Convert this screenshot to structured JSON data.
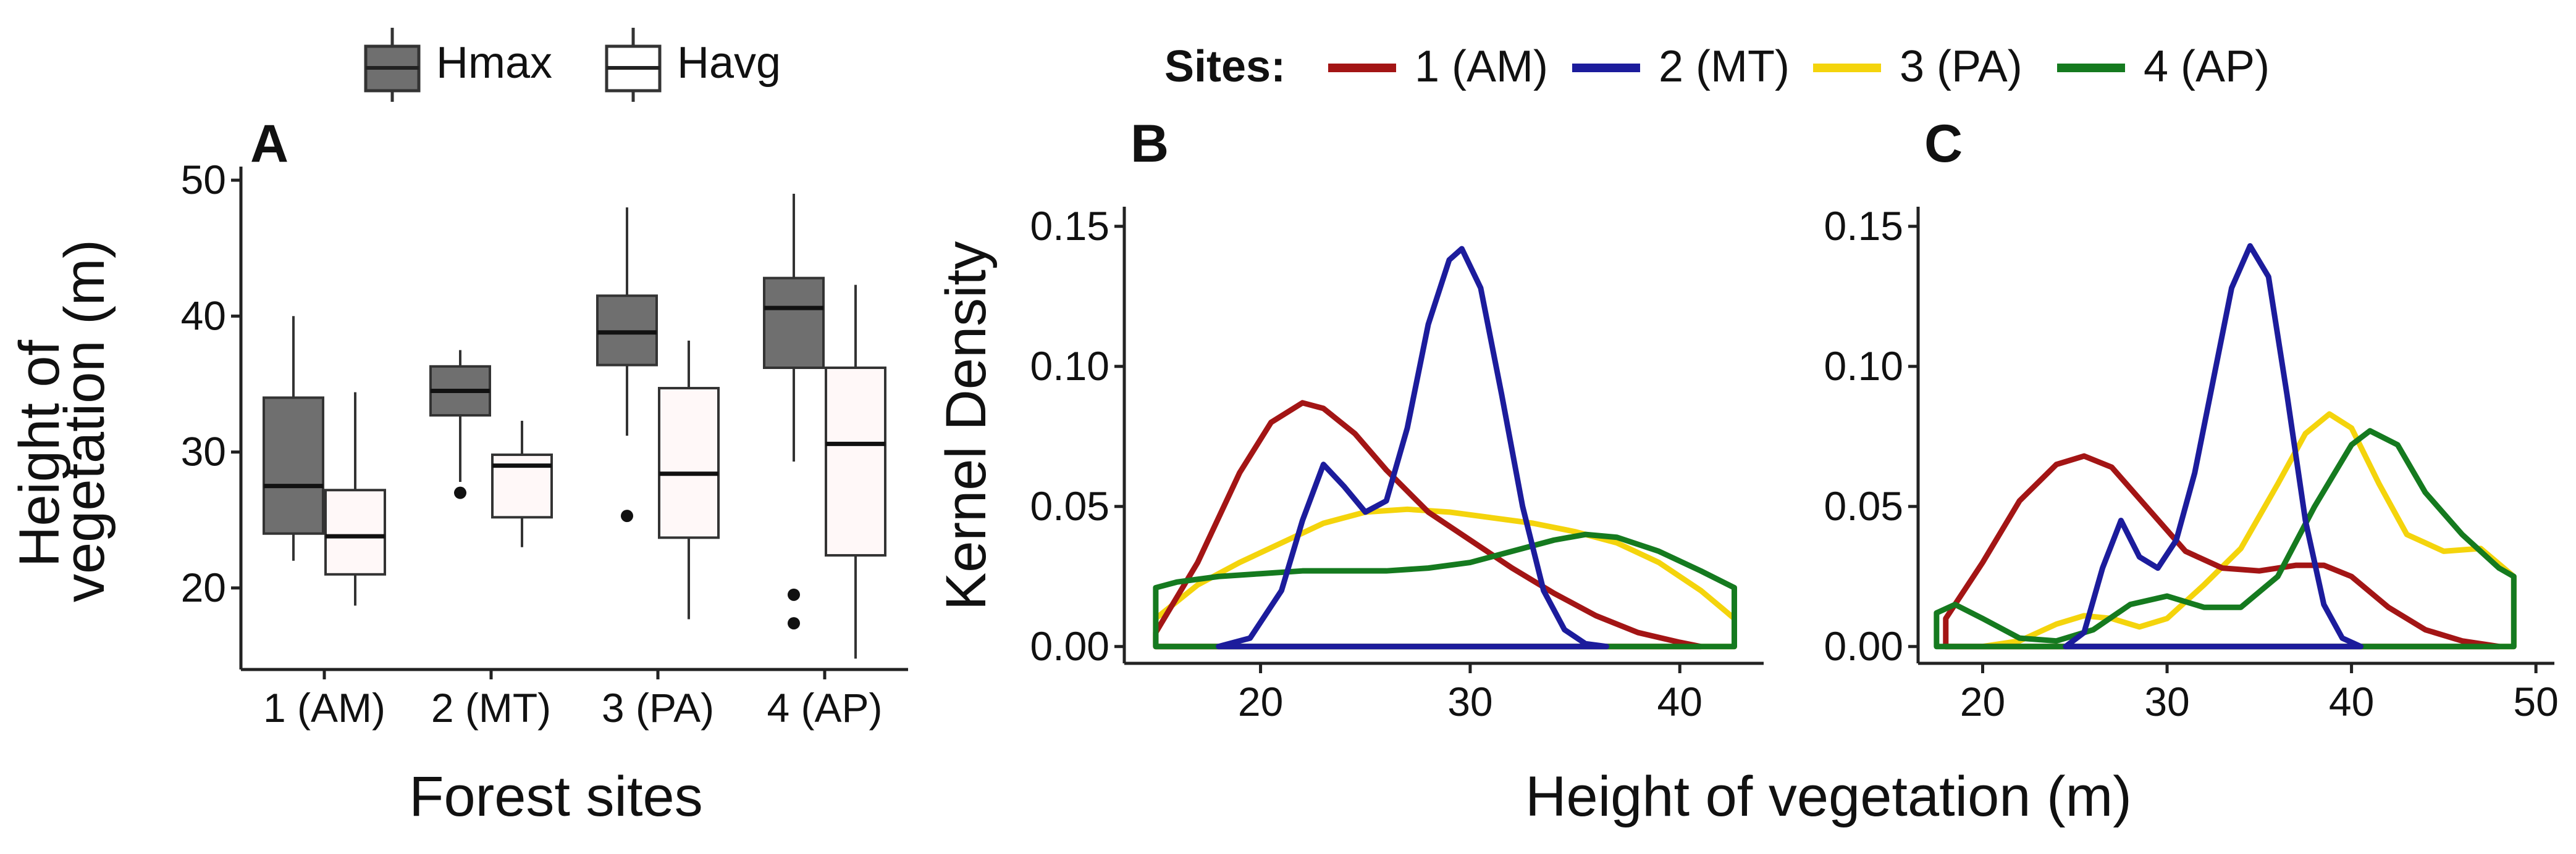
{
  "colors": {
    "hmax_fill": "#6f6f6f",
    "havg_fill": "#fff8f8",
    "box_stroke": "#333333",
    "site1": "#a31515",
    "site2": "#1c1c9c",
    "site3": "#f4d40c",
    "site4": "#157a1f"
  },
  "legend_box": {
    "hmax": "Hmax",
    "havg": "Havg"
  },
  "legend_sites": {
    "title": "Sites:"
  },
  "xlabel_shared": "Height of vegetation (m)",
  "chart_data": [
    {
      "panel": "A",
      "type": "box",
      "xlabel": "Forest sites",
      "ylabel_lines": [
        "Height of",
        "vegetation (m)"
      ],
      "categories": [
        "1 (AM)",
        "2 (MT)",
        "3 (PA)",
        "4 (AP)"
      ],
      "ylim": [
        14,
        51
      ],
      "yticks": [
        20,
        30,
        40,
        50
      ],
      "grid": false,
      "series": [
        {
          "name": "Hmax",
          "boxes": [
            {
              "min": 22,
              "q1": 24,
              "median": 27.5,
              "q3": 34,
              "max": 40,
              "outliers": []
            },
            {
              "min": 27.8,
              "q1": 32.7,
              "median": 34.5,
              "q3": 36.3,
              "max": 37.5,
              "outliers": [
                27
              ]
            },
            {
              "min": 31.2,
              "q1": 36.4,
              "median": 38.8,
              "q3": 41.5,
              "max": 48,
              "outliers": [
                25.3
              ]
            },
            {
              "min": 29.3,
              "q1": 36.2,
              "median": 40.6,
              "q3": 42.8,
              "max": 49,
              "outliers": [
                19.5,
                17.4
              ]
            }
          ]
        },
        {
          "name": "Havg",
          "boxes": [
            {
              "min": 18.7,
              "q1": 21,
              "median": 23.8,
              "q3": 27.2,
              "max": 34.4,
              "outliers": []
            },
            {
              "min": 23,
              "q1": 25.2,
              "median": 29,
              "q3": 29.8,
              "max": 32.3,
              "outliers": []
            },
            {
              "min": 17.7,
              "q1": 23.7,
              "median": 28.4,
              "q3": 34.7,
              "max": 38.2,
              "outliers": []
            },
            {
              "min": 14.8,
              "q1": 22.4,
              "median": 30.6,
              "q3": 36.2,
              "max": 42.3,
              "outliers": []
            }
          ]
        }
      ]
    },
    {
      "panel": "B",
      "type": "area",
      "ylabel": "Kernel Density",
      "xlim": [
        13.5,
        44
      ],
      "ylim": [
        -0.006,
        0.157
      ],
      "xticks": [
        20,
        30,
        40
      ],
      "yticks": [
        0.0,
        0.05,
        0.1,
        0.15
      ],
      "ytick_labels": [
        "0.00",
        "0.05",
        "0.10",
        "0.15"
      ],
      "grid": false,
      "series": [
        {
          "name": "1 (AM)",
          "color_key": "site1",
          "x": [
            15,
            17,
            19,
            20.5,
            22,
            23,
            24.5,
            26,
            28,
            30,
            32,
            34,
            36,
            38,
            40,
            41
          ],
          "y": [
            0.005,
            0.03,
            0.062,
            0.08,
            0.087,
            0.085,
            0.076,
            0.063,
            0.048,
            0.038,
            0.028,
            0.019,
            0.011,
            0.005,
            0.0015,
            0.0
          ]
        },
        {
          "name": "2 (MT)",
          "color_key": "site2",
          "x": [
            18,
            19.5,
            21,
            22,
            23,
            24,
            25,
            26,
            27,
            28,
            29,
            29.6,
            30.5,
            31.5,
            32.5,
            33.5,
            34.5,
            35.5,
            36.5
          ],
          "y": [
            0.0,
            0.003,
            0.02,
            0.045,
            0.065,
            0.057,
            0.048,
            0.052,
            0.078,
            0.115,
            0.138,
            0.142,
            0.128,
            0.09,
            0.05,
            0.02,
            0.006,
            0.001,
            0.0
          ]
        },
        {
          "name": "3 (PA)",
          "color_key": "site3",
          "x": [
            15,
            17,
            19,
            21,
            23,
            25,
            27,
            29,
            31,
            33,
            35,
            37,
            39,
            41,
            42.6
          ],
          "y": [
            0.01,
            0.022,
            0.03,
            0.037,
            0.044,
            0.048,
            0.049,
            0.048,
            0.046,
            0.044,
            0.041,
            0.037,
            0.03,
            0.02,
            0.01
          ]
        },
        {
          "name": "4 (AP)",
          "color_key": "site4",
          "x": [
            15,
            16,
            18,
            20,
            22,
            24,
            26,
            28,
            30,
            32,
            34,
            35.5,
            37,
            39,
            41,
            42.6
          ],
          "y": [
            0.021,
            0.023,
            0.025,
            0.026,
            0.027,
            0.027,
            0.027,
            0.028,
            0.03,
            0.034,
            0.038,
            0.04,
            0.039,
            0.034,
            0.027,
            0.021
          ]
        }
      ]
    },
    {
      "panel": "C",
      "type": "area",
      "xlim": [
        16.5,
        51
      ],
      "ylim": [
        -0.006,
        0.157
      ],
      "xticks": [
        20,
        30,
        40,
        50
      ],
      "yticks": [
        0.0,
        0.05,
        0.1,
        0.15
      ],
      "ytick_labels": [
        "0.00",
        "0.05",
        "0.10",
        "0.15"
      ],
      "grid": false,
      "series": [
        {
          "name": "1 (AM)",
          "color_key": "site1",
          "x": [
            18,
            20,
            22,
            24,
            25.5,
            27,
            29,
            31,
            33,
            35,
            37,
            38.5,
            40,
            42,
            44,
            46,
            48
          ],
          "y": [
            0.01,
            0.03,
            0.052,
            0.065,
            0.068,
            0.064,
            0.049,
            0.034,
            0.028,
            0.027,
            0.029,
            0.029,
            0.025,
            0.014,
            0.006,
            0.002,
            0.0
          ]
        },
        {
          "name": "2 (MT)",
          "color_key": "site2",
          "x": [
            24.5,
            25.5,
            26.5,
            27.5,
            28.5,
            29.5,
            30.5,
            31.5,
            32.5,
            33.5,
            34.5,
            35.5,
            36.5,
            37.5,
            38.5,
            39.5,
            40.5
          ],
          "y": [
            0.0,
            0.005,
            0.028,
            0.045,
            0.032,
            0.028,
            0.038,
            0.062,
            0.095,
            0.128,
            0.143,
            0.132,
            0.09,
            0.045,
            0.015,
            0.003,
            0.0
          ]
        },
        {
          "name": "3 (PA)",
          "color_key": "site3",
          "x": [
            18,
            20,
            22,
            24,
            25.5,
            27,
            28.5,
            30,
            32,
            34,
            36,
            37.5,
            38.8,
            40,
            41.5,
            43,
            45,
            47,
            48.8
          ],
          "y": [
            0.0,
            0.0,
            0.002,
            0.008,
            0.011,
            0.01,
            0.007,
            0.01,
            0.022,
            0.035,
            0.058,
            0.076,
            0.083,
            0.078,
            0.058,
            0.04,
            0.034,
            0.035,
            0.025
          ]
        },
        {
          "name": "4 (AP)",
          "color_key": "site4",
          "x": [
            17.5,
            18.5,
            20,
            22,
            24,
            26,
            28,
            30,
            32,
            34,
            36,
            38,
            40,
            41,
            42.5,
            44,
            46,
            48,
            48.8
          ],
          "y": [
            0.012,
            0.015,
            0.01,
            0.003,
            0.002,
            0.006,
            0.015,
            0.018,
            0.014,
            0.014,
            0.025,
            0.05,
            0.072,
            0.077,
            0.072,
            0.055,
            0.04,
            0.028,
            0.025
          ]
        }
      ]
    }
  ]
}
